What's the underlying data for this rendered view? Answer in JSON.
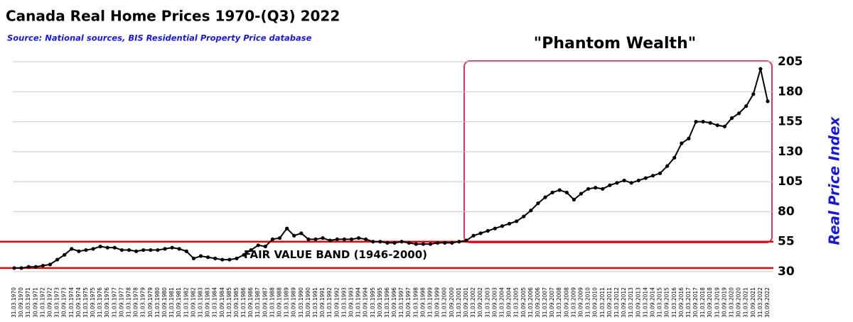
{
  "chart_data": {
    "type": "line",
    "title": "Canada Real Home Prices 1970-(Q3) 2022",
    "subtitle": "Source: National sources, BIS Residential Property Price database",
    "y_label": "Real  Price Index",
    "annotations": [
      "\"Phantom Wealth\"",
      "FAIR VALUE BAND (1946-2000)"
    ],
    "fair_value_band": [
      33,
      55
    ],
    "color": "#000000",
    "band_color": "#e8000b",
    "grid": true,
    "ylim": [
      30,
      205
    ],
    "yticks": [
      30,
      55,
      80,
      105,
      130,
      155,
      180,
      205
    ],
    "categories": [
      "31.03.1970",
      "30.09.1970",
      "31.03.1971",
      "30.09.1971",
      "31.03.1972",
      "30.09.1972",
      "31.03.1973",
      "30.09.1973",
      "31.03.1974",
      "30.09.1974",
      "31.03.1975",
      "30.09.1975",
      "31.03.1976",
      "30.09.1976",
      "31.03.1977",
      "30.09.1977",
      "31.03.1978",
      "30.09.1978",
      "31.03.1979",
      "30.09.1979",
      "31.03.1980",
      "30.09.1980",
      "31.03.1981",
      "30.09.1981",
      "31.03.1982",
      "30.09.1982",
      "31.03.1983",
      "30.09.1983",
      "31.03.1984",
      "30.09.1984",
      "31.03.1985",
      "30.09.1985",
      "31.03.1986",
      "30.09.1986",
      "31.03.1987",
      "30.09.1987",
      "31.03.1988",
      "30.09.1988",
      "31.03.1989",
      "30.09.1989",
      "31.03.1990",
      "30.09.1990",
      "31.03.1991",
      "30.09.1991",
      "31.03.1992",
      "30.09.1992",
      "31.03.1993",
      "30.09.1993",
      "31.03.1994",
      "30.09.1994",
      "31.03.1995",
      "30.09.1995",
      "31.03.1996",
      "30.09.1996",
      "31.03.1997",
      "30.09.1997",
      "31.03.1998",
      "30.09.1998",
      "31.03.1999",
      "30.09.1999",
      "31.03.2000",
      "30.09.2000",
      "31.03.2001",
      "30.09.2001",
      "31.03.2002",
      "30.09.2002",
      "31.03.2003",
      "30.09.2003",
      "31.03.2004",
      "30.09.2004",
      "31.03.2005",
      "30.09.2005",
      "31.03.2006",
      "30.09.2006",
      "31.03.2007",
      "30.09.2007",
      "31.03.2008",
      "30.09.2008",
      "31.03.2009",
      "30.09.2009",
      "31.03.2010",
      "30.09.2010",
      "31.03.2011",
      "30.09.2011",
      "31.03.2012",
      "30.09.2012",
      "31.03.2013",
      "30.09.2013",
      "31.03.2014",
      "30.09.2014",
      "31.03.2015",
      "30.09.2015",
      "31.03.2016",
      "30.09.2016",
      "31.03.2017",
      "30.09.2017",
      "31.03.2018",
      "30.09.2018",
      "31.03.2019",
      "30.09.2019",
      "31.03.2020",
      "30.09.2020",
      "31.03.2021",
      "30.09.2021",
      "31.03.2022",
      "30.09.2022"
    ],
    "values": [
      33,
      33,
      34,
      34,
      35,
      36,
      40,
      44,
      49,
      47,
      48,
      49,
      51,
      50,
      50,
      48,
      48,
      47,
      48,
      48,
      48,
      49,
      50,
      49,
      47,
      41,
      43,
      42,
      41,
      40,
      40,
      41,
      44,
      48,
      52,
      51,
      57,
      58,
      66,
      60,
      62,
      57,
      57,
      58,
      56,
      57,
      57,
      57,
      58,
      57,
      55,
      55,
      54,
      54,
      55,
      54,
      53,
      53,
      53,
      54,
      54,
      54,
      55,
      56,
      60,
      62,
      64,
      66,
      68,
      70,
      72,
      76,
      81,
      87,
      92,
      96,
      98,
      96,
      90,
      95,
      99,
      100,
      99,
      102,
      104,
      106,
      104,
      106,
      108,
      110,
      112,
      118,
      125,
      137,
      141,
      155,
      155,
      154,
      152,
      151,
      158,
      162,
      168,
      178,
      199,
      172
    ]
  }
}
